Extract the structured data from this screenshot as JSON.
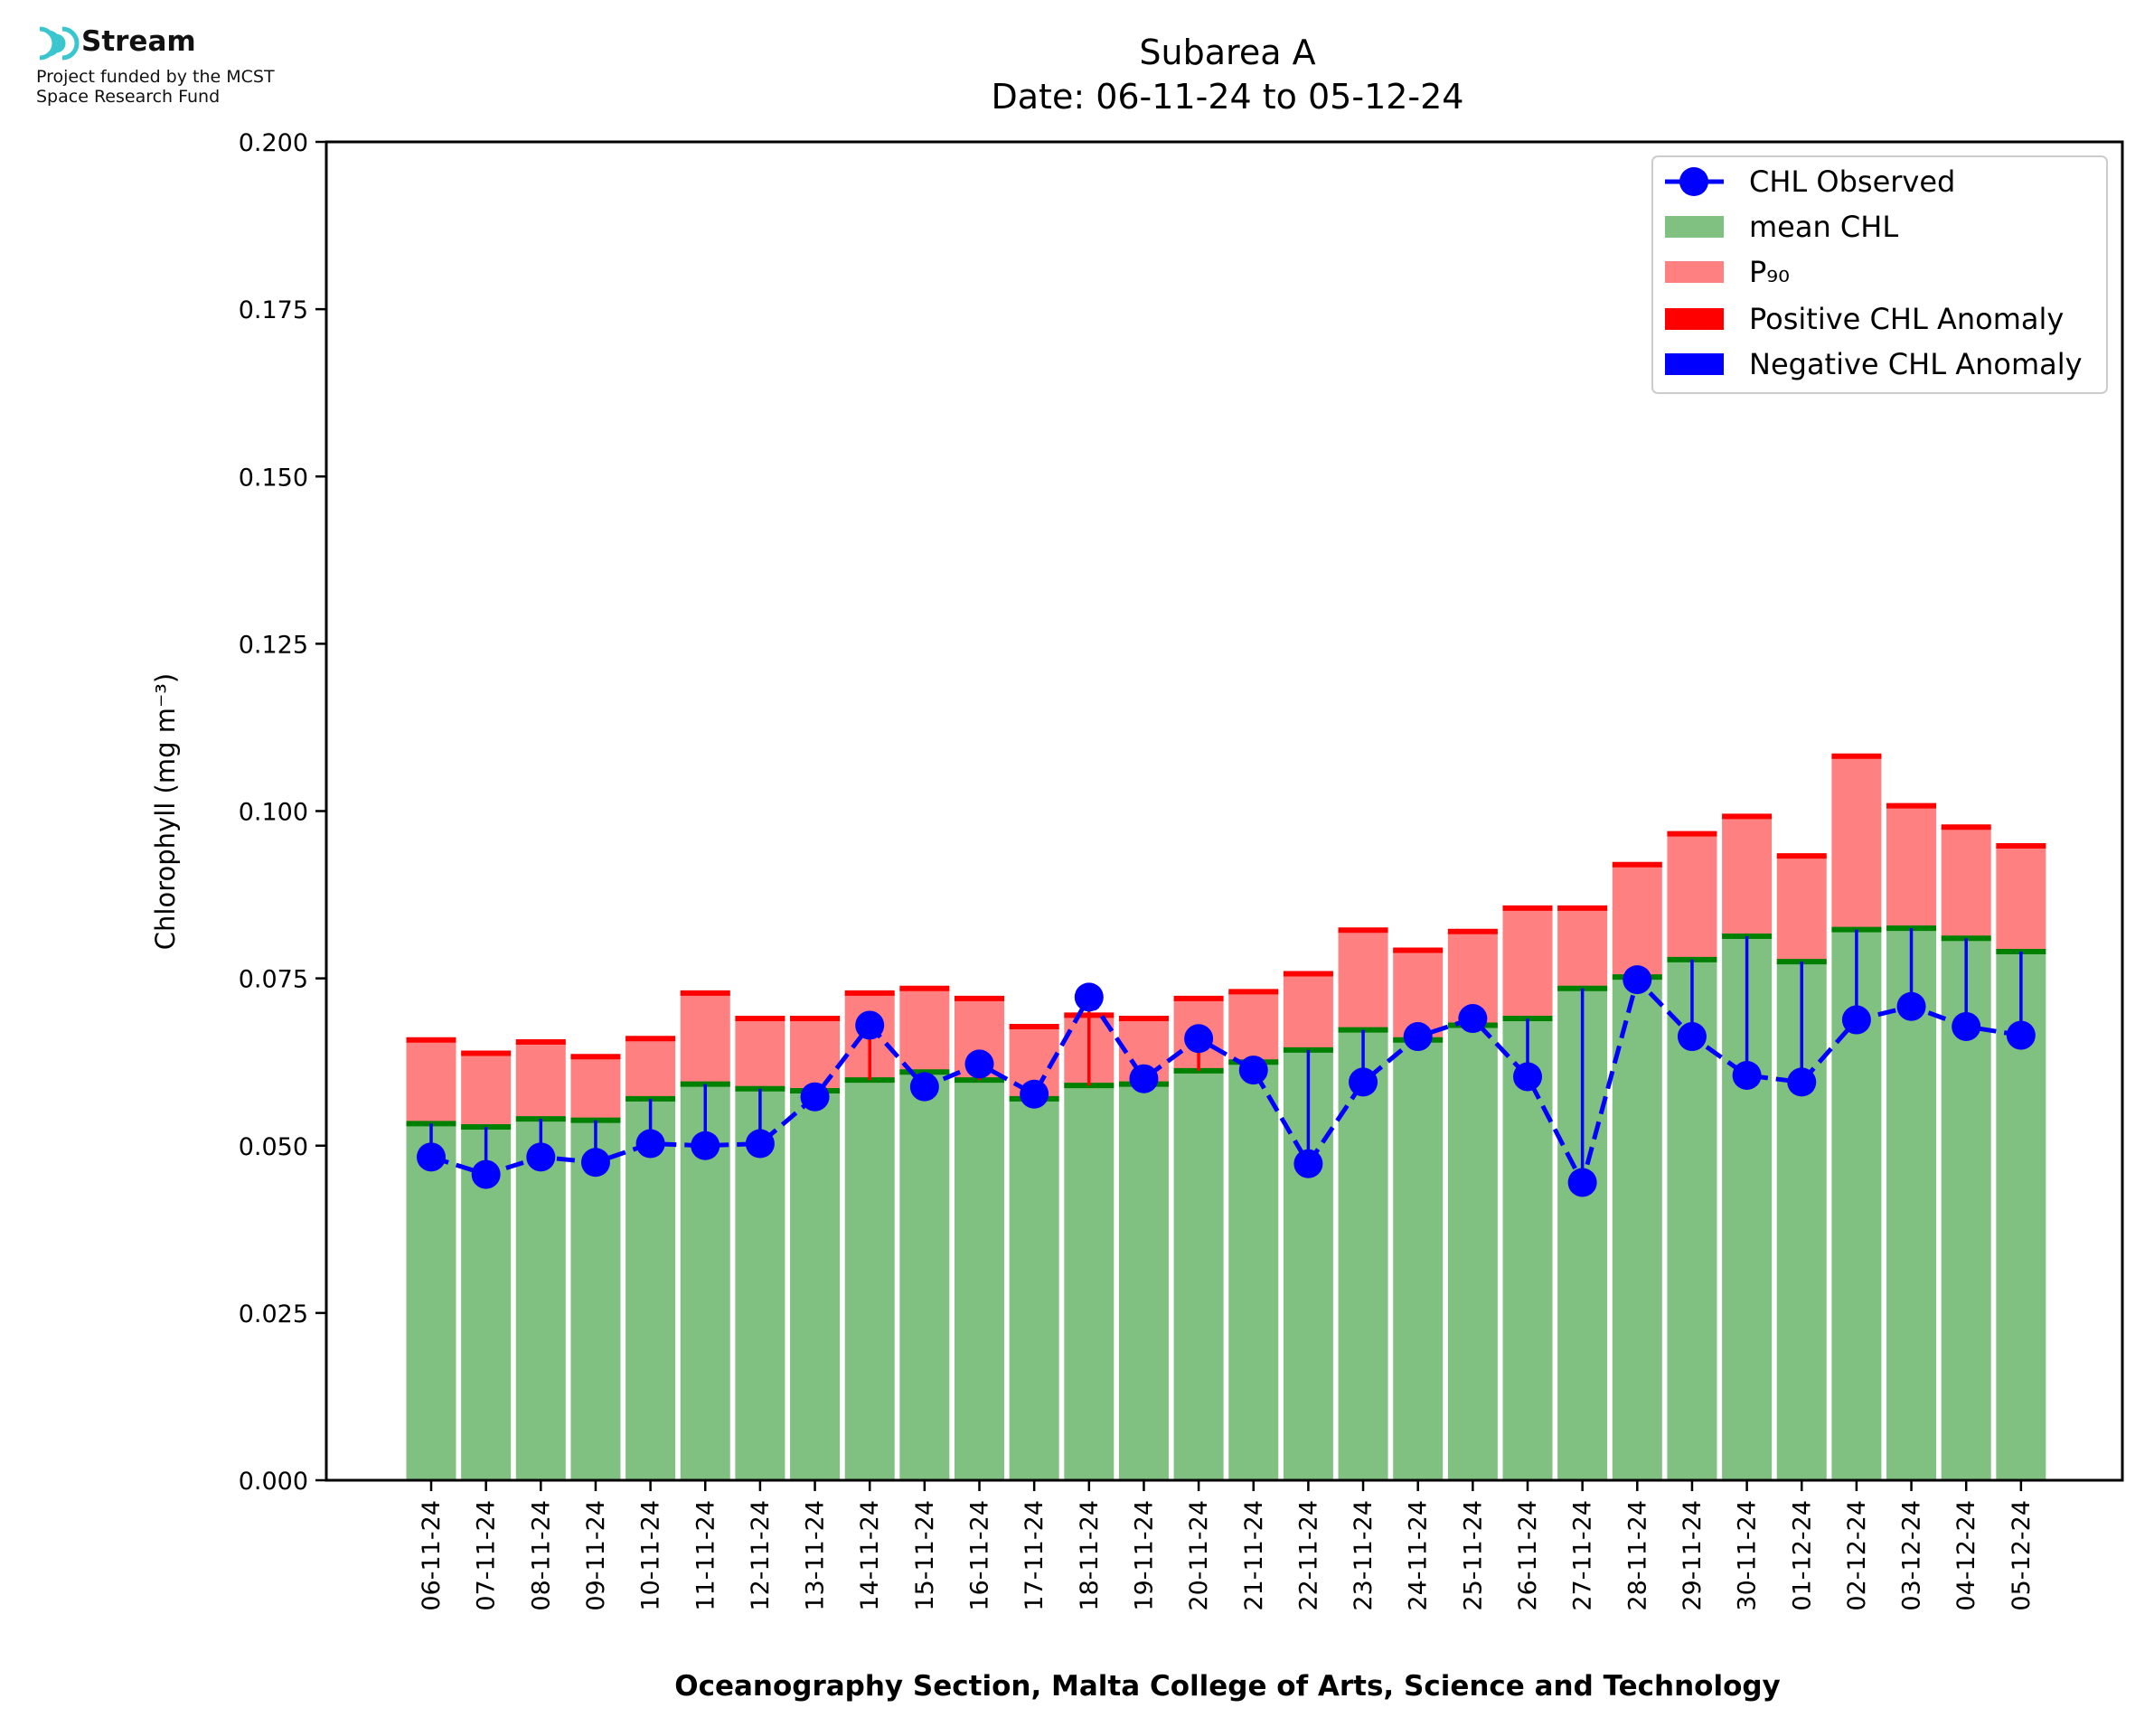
{
  "logo": {
    "name": "Stream",
    "funding_line1": "Project funded by the MCST",
    "funding_line2": "Space Research Fund",
    "color": "#39c6cf"
  },
  "chart_data": {
    "type": "bar",
    "title": "Subarea A",
    "subtitle": "Date: 06-11-24 to 05-12-24",
    "xlabel": "Oceanography Section, Malta College of Arts, Science and Technology",
    "ylabel": "Chlorophyll (mg m⁻³)",
    "ylim": [
      0,
      0.2
    ],
    "yticks": [
      "0.000",
      "0.025",
      "0.050",
      "0.075",
      "0.100",
      "0.125",
      "0.150",
      "0.175",
      "0.200"
    ],
    "categories": [
      "06-11-24",
      "07-11-24",
      "08-11-24",
      "09-11-24",
      "10-11-24",
      "11-11-24",
      "12-11-24",
      "13-11-24",
      "14-11-24",
      "15-11-24",
      "16-11-24",
      "17-11-24",
      "18-11-24",
      "19-11-24",
      "20-11-24",
      "21-11-24",
      "22-11-24",
      "23-11-24",
      "24-11-24",
      "25-11-24",
      "26-11-24",
      "27-11-24",
      "28-11-24",
      "29-11-24",
      "30-11-24",
      "01-12-24",
      "02-12-24",
      "03-12-24",
      "04-12-24",
      "05-12-24"
    ],
    "series": [
      {
        "name": "CHL Observed",
        "type": "line",
        "style": "dashed-with-markers",
        "values": [
          0.0483,
          0.0457,
          0.0483,
          0.0475,
          0.0503,
          0.05,
          0.0503,
          0.0573,
          0.068,
          0.0588,
          0.0622,
          0.0577,
          0.0722,
          0.06,
          0.066,
          0.0613,
          0.0473,
          0.0595,
          0.0663,
          0.069,
          0.0603,
          0.0445,
          0.0748,
          0.0663,
          0.0605,
          0.0595,
          0.0688,
          0.0708,
          0.0678,
          0.0665
        ]
      },
      {
        "name": "mean CHL",
        "type": "bar",
        "values": [
          0.0533,
          0.0528,
          0.054,
          0.0538,
          0.057,
          0.0592,
          0.0585,
          0.0582,
          0.0598,
          0.061,
          0.0598,
          0.057,
          0.059,
          0.0592,
          0.0612,
          0.0625,
          0.0643,
          0.0673,
          0.0658,
          0.068,
          0.069,
          0.0735,
          0.0752,
          0.0778,
          0.0813,
          0.0775,
          0.0823,
          0.0825,
          0.081,
          0.079
        ]
      },
      {
        "name": "P₉₀",
        "type": "bar",
        "values": [
          0.0658,
          0.0638,
          0.0655,
          0.0633,
          0.066,
          0.0728,
          0.069,
          0.069,
          0.0728,
          0.0735,
          0.072,
          0.0678,
          0.0695,
          0.069,
          0.072,
          0.073,
          0.0757,
          0.0822,
          0.0792,
          0.082,
          0.0855,
          0.0855,
          0.092,
          0.0966,
          0.0992,
          0.0933,
          0.1082,
          0.1008,
          0.0976,
          0.0948
        ]
      },
      {
        "name": "Positive CHL Anomaly",
        "type": "legend-only"
      },
      {
        "name": "Negative CHL Anomaly",
        "type": "legend-only"
      }
    ],
    "colors": {
      "mean": "#80c080",
      "mean_edge": "#008000",
      "p90": "#ff8080",
      "p90_edge": "#ff0000",
      "observed": "#0000ff",
      "positive": "#ff0000",
      "negative": "#0000ff"
    },
    "legend_placement": "top-right",
    "grid": false
  }
}
